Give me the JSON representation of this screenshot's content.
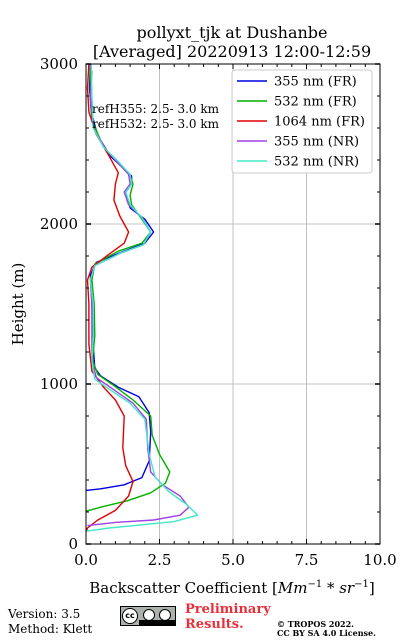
{
  "chart_data": {
    "type": "line",
    "title_line1": "pollyxt_tjk at Dushanbe",
    "title_line2": "[Averaged] 20220913 12:00-12:59",
    "xlabel_prefix": "Backscatter Coefficient [",
    "xlabel_unit": "Mm",
    "xlabel_exp1": "−1",
    "xlabel_mid": " * sr",
    "xlabel_exp2": "−1",
    "xlabel_suffix": "]",
    "ylabel": "Height (m)",
    "xlim": [
      0,
      10
    ],
    "ylim": [
      0,
      3000
    ],
    "xticks": [
      0,
      2.5,
      5,
      7.5,
      10
    ],
    "xtick_labels": [
      "0.0",
      "2.5",
      "5.0",
      "7.5",
      "10.0"
    ],
    "yticks": [
      0,
      1000,
      2000,
      3000
    ],
    "ytick_labels": [
      "0",
      "1000",
      "2000",
      "3000"
    ],
    "grid": true,
    "legend_position": "top-right",
    "annotations": [
      "refH355:  2.5- 3.0 km",
      "refH532:  2.5- 3.0 km"
    ],
    "series": [
      {
        "name": "355 nm (FR)",
        "color": "#0000e0",
        "points": [
          [
            0,
            335
          ],
          [
            0.5,
            345
          ],
          [
            1.3,
            370
          ],
          [
            1.9,
            415
          ],
          [
            2.15,
            520
          ],
          [
            2.2,
            700
          ],
          [
            2.15,
            820
          ],
          [
            1.8,
            920
          ],
          [
            1.1,
            980
          ],
          [
            0.5,
            1050
          ],
          [
            0.3,
            1100
          ],
          [
            0.22,
            1300
          ],
          [
            0.2,
            1500
          ],
          [
            0.15,
            1680
          ],
          [
            0.35,
            1760
          ],
          [
            1.3,
            1830
          ],
          [
            2.0,
            1880
          ],
          [
            2.3,
            1950
          ],
          [
            2.0,
            2030
          ],
          [
            1.5,
            2100
          ],
          [
            1.35,
            2200
          ],
          [
            1.55,
            2250
          ],
          [
            1.55,
            2300
          ],
          [
            1.2,
            2360
          ],
          [
            0.85,
            2420
          ],
          [
            0.4,
            2550
          ],
          [
            0.18,
            2700
          ],
          [
            0.12,
            2850
          ],
          [
            0.15,
            3000
          ]
        ]
      },
      {
        "name": "532 nm (FR)",
        "color": "#00b000",
        "points": [
          [
            0,
            205
          ],
          [
            0.6,
            235
          ],
          [
            1.4,
            270
          ],
          [
            2.2,
            320
          ],
          [
            2.7,
            380
          ],
          [
            2.85,
            450
          ],
          [
            2.5,
            560
          ],
          [
            2.25,
            680
          ],
          [
            2.2,
            800
          ],
          [
            1.6,
            900
          ],
          [
            0.95,
            990
          ],
          [
            0.4,
            1060
          ],
          [
            0.22,
            1150
          ],
          [
            0.3,
            1300
          ],
          [
            0.28,
            1500
          ],
          [
            0.2,
            1650
          ],
          [
            0.3,
            1750
          ],
          [
            1.1,
            1830
          ],
          [
            1.9,
            1880
          ],
          [
            2.2,
            1950
          ],
          [
            1.9,
            2030
          ],
          [
            1.55,
            2120
          ],
          [
            1.5,
            2180
          ],
          [
            1.6,
            2250
          ],
          [
            1.5,
            2300
          ],
          [
            1.1,
            2380
          ],
          [
            0.6,
            2480
          ],
          [
            0.2,
            2650
          ],
          [
            0.15,
            2800
          ],
          [
            0.15,
            3000
          ]
        ]
      },
      {
        "name": "1064 nm (FR)",
        "color": "#e00000",
        "points": [
          [
            0,
            75
          ],
          [
            0.05,
            100
          ],
          [
            0.4,
            150
          ],
          [
            1.0,
            210
          ],
          [
            1.45,
            300
          ],
          [
            1.6,
            390
          ],
          [
            1.35,
            490
          ],
          [
            1.25,
            600
          ],
          [
            1.3,
            800
          ],
          [
            1.0,
            900
          ],
          [
            0.6,
            980
          ],
          [
            0.2,
            1080
          ],
          [
            0.1,
            1250
          ],
          [
            0.1,
            1500
          ],
          [
            0.05,
            1650
          ],
          [
            0.2,
            1730
          ],
          [
            0.7,
            1800
          ],
          [
            1.3,
            1880
          ],
          [
            1.45,
            1950
          ],
          [
            1.15,
            2050
          ],
          [
            0.95,
            2150
          ],
          [
            1.0,
            2250
          ],
          [
            1.1,
            2320
          ],
          [
            0.8,
            2420
          ],
          [
            0.35,
            2560
          ],
          [
            0.1,
            2700
          ],
          [
            0.05,
            2850
          ],
          [
            0.1,
            3000
          ]
        ]
      },
      {
        "name": "355 nm (NR)",
        "color": "#a040e8",
        "points": [
          [
            0.05,
            115
          ],
          [
            1.0,
            135
          ],
          [
            2.3,
            150
          ],
          [
            3.2,
            180
          ],
          [
            3.5,
            230
          ],
          [
            3.2,
            300
          ],
          [
            2.6,
            370
          ],
          [
            2.2,
            450
          ],
          [
            2.1,
            600
          ],
          [
            2.05,
            780
          ],
          [
            1.6,
            880
          ],
          [
            0.9,
            970
          ],
          [
            0.35,
            1040
          ],
          [
            0.2,
            1150
          ],
          [
            0.2,
            1300
          ],
          [
            0.2,
            1500
          ],
          [
            0.15,
            1650
          ],
          [
            0.3,
            1740
          ],
          [
            1.2,
            1820
          ],
          [
            1.95,
            1870
          ],
          [
            2.2,
            1950
          ],
          [
            1.9,
            2040
          ],
          [
            1.45,
            2120
          ],
          [
            1.3,
            2200
          ],
          [
            1.5,
            2250
          ],
          [
            1.45,
            2310
          ],
          [
            1.1,
            2380
          ],
          [
            0.7,
            2460
          ],
          [
            0.25,
            2600
          ],
          [
            0.15,
            2800
          ],
          [
            0.2,
            2950
          ],
          [
            0.12,
            3000
          ]
        ]
      },
      {
        "name": "532 nm (NR)",
        "color": "#40e8c8",
        "points": [
          [
            0,
            80
          ],
          [
            0.8,
            100
          ],
          [
            1.9,
            120
          ],
          [
            3.0,
            140
          ],
          [
            3.8,
            180
          ],
          [
            3.4,
            250
          ],
          [
            2.8,
            330
          ],
          [
            2.35,
            420
          ],
          [
            2.15,
            560
          ],
          [
            2.0,
            780
          ],
          [
            1.5,
            880
          ],
          [
            0.85,
            960
          ],
          [
            0.3,
            1030
          ],
          [
            0.2,
            1150
          ],
          [
            0.25,
            1300
          ],
          [
            0.25,
            1500
          ],
          [
            0.15,
            1650
          ],
          [
            0.3,
            1740
          ],
          [
            1.2,
            1820
          ],
          [
            1.95,
            1870
          ],
          [
            2.2,
            1950
          ],
          [
            1.9,
            2040
          ],
          [
            1.5,
            2120
          ],
          [
            1.35,
            2200
          ],
          [
            1.55,
            2250
          ],
          [
            1.5,
            2310
          ],
          [
            1.1,
            2390
          ],
          [
            0.6,
            2480
          ],
          [
            0.25,
            2600
          ],
          [
            0.2,
            2800
          ],
          [
            0.18,
            3000
          ]
        ]
      }
    ]
  },
  "footer": {
    "version": "Version: 3.5",
    "method": "Method: Klett",
    "license_badge_text": "cc",
    "preliminary_line1": "Preliminary",
    "preliminary_line2": "Results.",
    "copyright_line1": "© TROPOS 2022.",
    "copyright_line2": "CC BY SA 4.0 License."
  }
}
